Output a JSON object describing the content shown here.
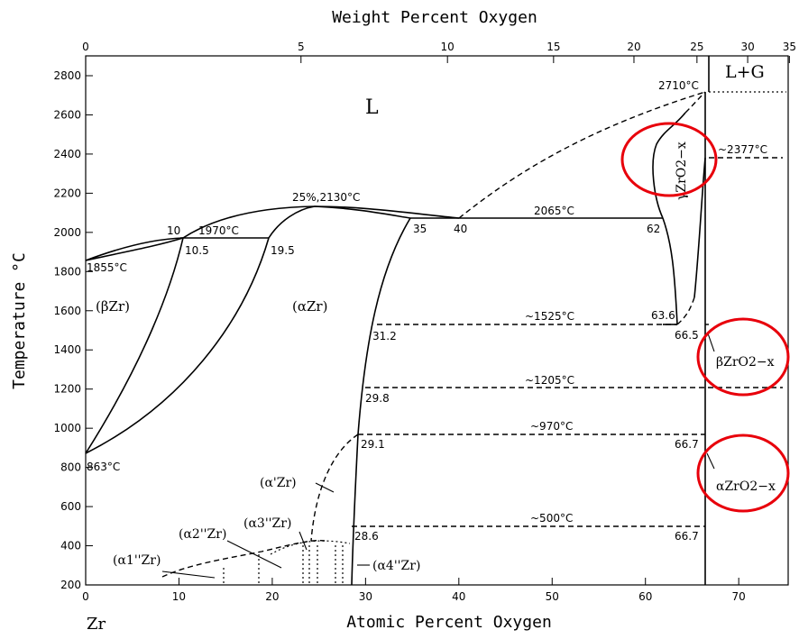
{
  "title_top": "Weight Percent Oxygen",
  "xlabel": "Atomic Percent Oxygen",
  "ylabel": "Temperature °C",
  "element_label": "Zr",
  "colors": {
    "line": "#000000",
    "highlight": "#e8000b"
  },
  "chart_data": {
    "type": "phase-diagram",
    "x_bottom": {
      "label": "Atomic Percent Oxygen",
      "range": [
        0,
        75
      ],
      "ticks": [
        "0",
        "10",
        "20",
        "30",
        "40",
        "50",
        "60",
        "70"
      ]
    },
    "x_top": {
      "label": "Weight Percent Oxygen",
      "ticks": [
        "0",
        "5",
        "10",
        "15",
        "20",
        "25",
        "30",
        "35"
      ]
    },
    "y": {
      "label": "Temperature °C",
      "range": [
        200,
        2900
      ],
      "ticks": [
        "200",
        "400",
        "600",
        "800",
        "1000",
        "1200",
        "1400",
        "1600",
        "1800",
        "2000",
        "2200",
        "2400",
        "2600",
        "2800"
      ]
    },
    "phases": {
      "liquid": "L",
      "liquid_gas": "L+G",
      "beta_zr": "(βZr)",
      "alpha_zr": "(αZr)",
      "alpha_prime": "(α'Zr)",
      "alpha1": "(α1''Zr)",
      "alpha2": "(α2''Zr)",
      "alpha3": "(α3''Zr)",
      "alpha4": "(α4''Zr)",
      "gamma_zro2": "γZrO2−x",
      "beta_zro2": "βZrO2−x",
      "alpha_zro2": "αZrO2−x"
    },
    "invariants": [
      {
        "temp_label": "1855°C",
        "x": 0,
        "y": 1855
      },
      {
        "temp_label": "863°C",
        "x": 0,
        "y": 863
      },
      {
        "temp_label": "1970°C",
        "x": 10.5,
        "y": 1970
      },
      {
        "temp_label": "25%,2130°C",
        "x": 25,
        "y": 2130
      },
      {
        "temp_label": "2065°C",
        "x": 40,
        "y": 2065
      },
      {
        "temp_label": "2710°C",
        "x": 66.7,
        "y": 2710
      },
      {
        "temp_label": "~2377°C",
        "x": 66.7,
        "y": 2377
      },
      {
        "temp_label": "~1525°C",
        "x": 31.2,
        "y": 1525
      },
      {
        "temp_label": "~1205°C",
        "x": 29.8,
        "y": 1205
      },
      {
        "temp_label": "~970°C",
        "x": 29.1,
        "y": 970
      },
      {
        "temp_label": "~500°C",
        "x": 28.6,
        "y": 500
      }
    ],
    "composition_labels": [
      "10",
      "10.5",
      "19.5",
      "35",
      "40",
      "62",
      "63.6",
      "66.5",
      "31.2",
      "29.8",
      "29.1",
      "66.7",
      "28.6",
      "66.7"
    ]
  }
}
